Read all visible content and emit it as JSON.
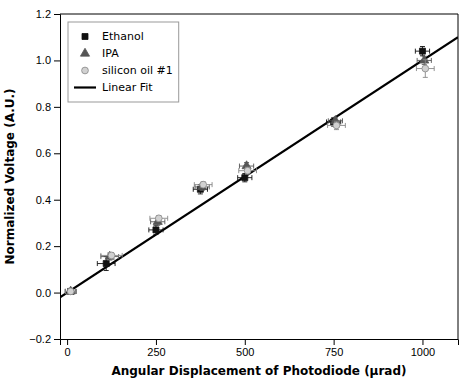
{
  "chart_data": {
    "type": "scatter",
    "xlabel": "Angular Displacement of Photodiode (μrad)",
    "ylabel": "Normalized Voltage (A.U.)",
    "xlim": [
      -20,
      1100
    ],
    "ylim": [
      -0.2,
      1.2
    ],
    "xticks": [
      0,
      250,
      500,
      750,
      1000
    ],
    "yticks": [
      {
        "value": -0.2,
        "label": "−0.2"
      },
      {
        "value": 0,
        "label": "0.0"
      },
      0.2,
      0.4,
      0.6,
      0.8,
      {
        "value": 1,
        "label": "1.0"
      },
      1.2
    ],
    "legend": "upper left",
    "series": [
      {
        "name": "Ethanol",
        "color": "#111111",
        "marker": "square",
        "x": [
          10,
          110,
          250,
          375,
          500,
          750,
          1000
        ],
        "values": [
          0.005,
          0.125,
          0.27,
          0.445,
          0.495,
          0.735,
          1.04
        ],
        "x_errors": [
          15,
          25,
          20,
          20,
          20,
          20,
          20
        ],
        "errors": [
          0.005,
          0.03,
          0.02,
          0.02,
          0.018,
          0.018,
          0.02
        ]
      },
      {
        "name": "IPA",
        "color": "#555555",
        "marker": "triangle",
        "x": [
          10,
          120,
          255,
          380,
          505,
          755,
          1005
        ],
        "values": [
          0.005,
          0.155,
          0.305,
          0.455,
          0.545,
          0.74,
          1.0
        ],
        "x_errors": [
          15,
          25,
          20,
          20,
          20,
          20,
          20
        ],
        "errors": [
          0.005,
          0.015,
          0.015,
          0.015,
          0.015,
          0.015,
          0.018
        ]
      },
      {
        "name": "silicon oil #1",
        "color": "#888888",
        "marker": "circle",
        "x": [
          10,
          125,
          258,
          383,
          508,
          758,
          1008
        ],
        "values": [
          0.005,
          0.16,
          0.32,
          0.465,
          0.525,
          0.72,
          0.965
        ],
        "x_errors": [
          15,
          30,
          25,
          25,
          25,
          25,
          25
        ],
        "errors": [
          0.005,
          0.012,
          0.012,
          0.012,
          0.015,
          0.018,
          0.038
        ]
      },
      {
        "name": "Linear Fit",
        "type": "line",
        "color": "#000000",
        "x": [
          -20,
          1100
        ],
        "values": [
          -0.02,
          1.1
        ]
      }
    ]
  }
}
